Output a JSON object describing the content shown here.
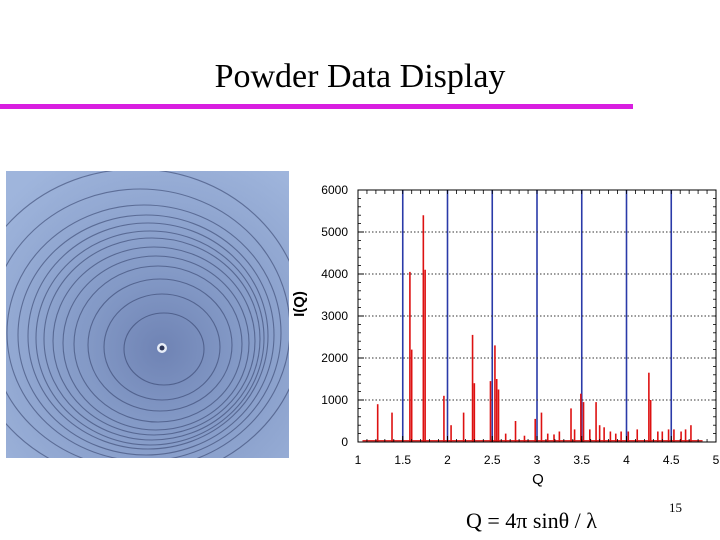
{
  "slide": {
    "title": "Powder Data Display",
    "formula": "Q = 4π sinθ / λ",
    "page_number": "15",
    "accent_color": "#d81ee0"
  },
  "photo": {
    "icon": "powder-diffraction-rings-image",
    "background_color": "#8ea6d0"
  },
  "chart_data": {
    "type": "line",
    "title": "",
    "xlabel": "Q",
    "ylabel": "I(Q)",
    "xlim": [
      1,
      5
    ],
    "ylim": [
      0,
      6000
    ],
    "x_ticks": [
      "1",
      "1.5",
      "2",
      "2.5",
      "3",
      "3.5",
      "4",
      "4.5",
      "5"
    ],
    "y_ticks": [
      "0",
      "1000",
      "2000",
      "3000",
      "4000",
      "5000",
      "6000"
    ],
    "grid": true,
    "series": [
      {
        "color": "#dd1111",
        "peaks": [
          [
            1.22,
            900
          ],
          [
            1.38,
            700
          ],
          [
            1.58,
            4050
          ],
          [
            1.6,
            2200
          ],
          [
            1.73,
            5400
          ],
          [
            1.75,
            4100
          ],
          [
            1.96,
            1100
          ],
          [
            2.04,
            400
          ],
          [
            2.18,
            700
          ],
          [
            2.28,
            2550
          ],
          [
            2.3,
            1400
          ],
          [
            2.48,
            1450
          ],
          [
            2.53,
            2300
          ],
          [
            2.55,
            1500
          ],
          [
            2.57,
            1250
          ],
          [
            2.65,
            200
          ],
          [
            2.76,
            500
          ],
          [
            2.86,
            150
          ],
          [
            2.98,
            550
          ],
          [
            3.05,
            700
          ],
          [
            3.12,
            200
          ],
          [
            3.19,
            180
          ],
          [
            3.25,
            250
          ],
          [
            3.38,
            800
          ],
          [
            3.42,
            300
          ],
          [
            3.49,
            1150
          ],
          [
            3.52,
            950
          ],
          [
            3.59,
            300
          ],
          [
            3.66,
            950
          ],
          [
            3.7,
            400
          ],
          [
            3.75,
            350
          ],
          [
            3.82,
            250
          ],
          [
            3.88,
            200
          ],
          [
            3.94,
            250
          ],
          [
            4.02,
            250
          ],
          [
            4.12,
            300
          ],
          [
            4.25,
            1650
          ],
          [
            4.27,
            1000
          ],
          [
            4.35,
            250
          ],
          [
            4.4,
            250
          ],
          [
            4.47,
            300
          ],
          [
            4.53,
            300
          ],
          [
            4.61,
            250
          ],
          [
            4.66,
            300
          ],
          [
            4.72,
            400
          ]
        ]
      }
    ]
  }
}
